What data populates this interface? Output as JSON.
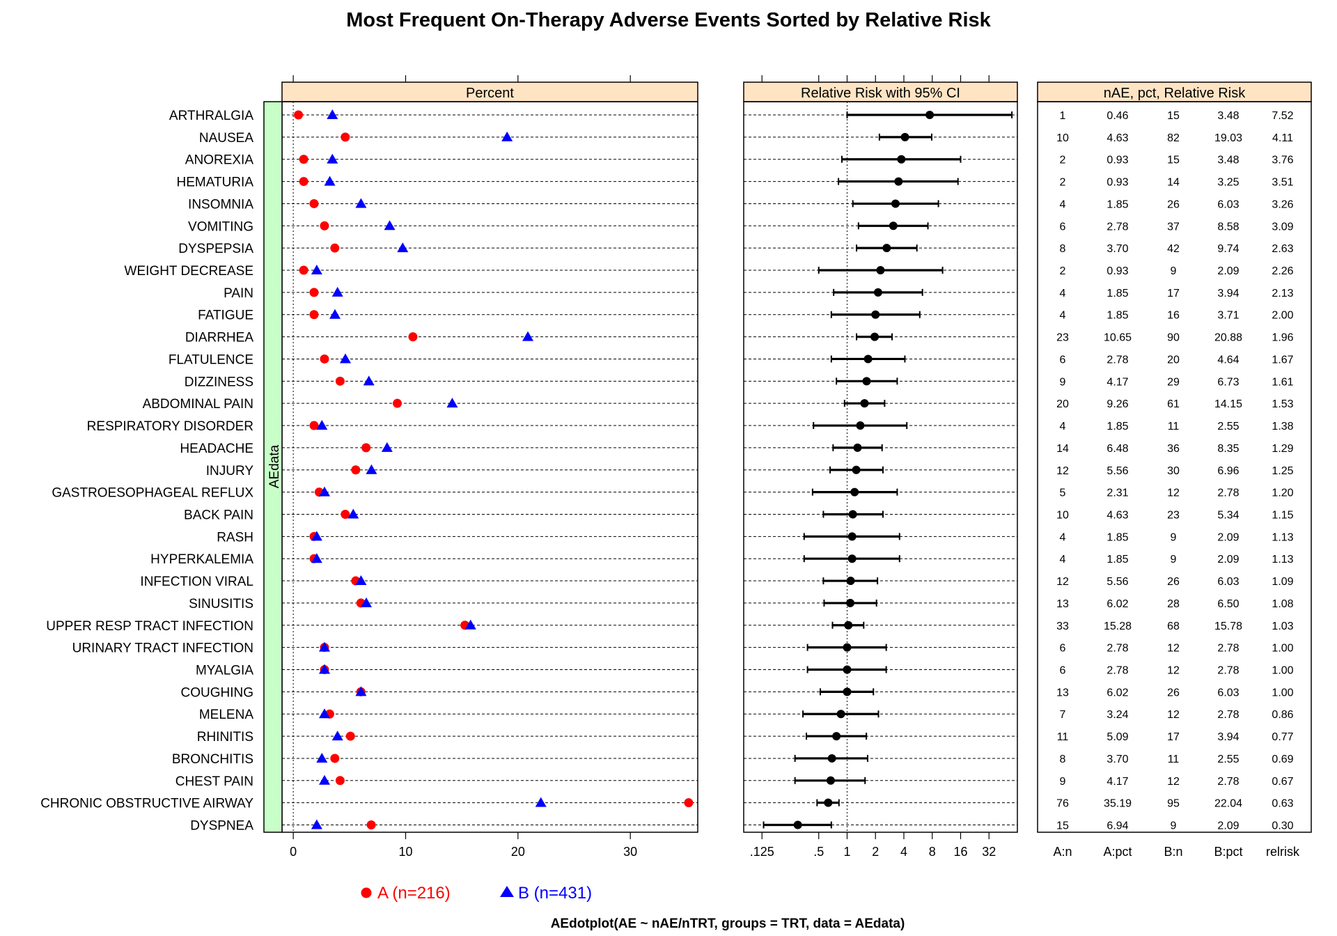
{
  "title": "Most Frequent On-Therapy Adverse Events Sorted by Relative Risk",
  "footer": "AEdotplot(AE ~ nAE/nTRT, groups = TRT, data = AEdata)",
  "strip_label": "AEdata",
  "colors": {
    "A": "#ff0000",
    "B": "#0000ff",
    "header": "#ffe4c4",
    "strip": "#c8ffc8"
  },
  "legend": [
    {
      "label": "A (n=216)",
      "color": "#ff0000",
      "symbol": "circle"
    },
    {
      "label": "B (n=431)",
      "color": "#0000ff",
      "symbol": "triangle"
    }
  ],
  "chart_data": [
    {
      "type": "dot",
      "panel_title": "Percent",
      "xlim": [
        -1,
        36
      ],
      "xticks": [
        0,
        10,
        20,
        30
      ],
      "series": [
        {
          "name": "A (n=216)",
          "marker": "circle",
          "color": "#ff0000"
        },
        {
          "name": "B (n=431)",
          "marker": "triangle",
          "color": "#0000ff"
        }
      ]
    },
    {
      "type": "forest",
      "panel_title": "Relative Risk with 95% CI",
      "scale": "log2",
      "xlim": [
        0.08,
        64
      ],
      "xticks": [
        0.125,
        0.5,
        1,
        2,
        4,
        8,
        16,
        32
      ],
      "xtick_labels": [
        ".125",
        ".5",
        "1",
        "2",
        "4",
        "8",
        "16",
        "32"
      ],
      "reference": 1
    },
    {
      "type": "table",
      "panel_title": "nAE, pct, Relative Risk",
      "columns": [
        "A:n",
        "A:pct",
        "B:n",
        "B:pct",
        "relrisk"
      ]
    }
  ],
  "rows": [
    {
      "ae": "ARTHRALGIA",
      "a_n": "1",
      "a_pct": "0.46",
      "b_n": "15",
      "b_pct": "3.48",
      "rr": "7.52",
      "lo": 1.0,
      "hi": 56.0
    },
    {
      "ae": "NAUSEA",
      "a_n": "10",
      "a_pct": "4.63",
      "b_n": "82",
      "b_pct": "19.03",
      "rr": "4.11",
      "lo": 2.2,
      "hi": 7.9
    },
    {
      "ae": "ANOREXIA",
      "a_n": "2",
      "a_pct": "0.93",
      "b_n": "15",
      "b_pct": "3.48",
      "rr": "3.76",
      "lo": 0.88,
      "hi": 16.0
    },
    {
      "ae": "HEMATURIA",
      "a_n": "2",
      "a_pct": "0.93",
      "b_n": "14",
      "b_pct": "3.25",
      "rr": "3.51",
      "lo": 0.81,
      "hi": 15.0
    },
    {
      "ae": "INSOMNIA",
      "a_n": "4",
      "a_pct": "1.85",
      "b_n": "26",
      "b_pct": "6.03",
      "rr": "3.26",
      "lo": 1.15,
      "hi": 9.3
    },
    {
      "ae": "VOMITING",
      "a_n": "6",
      "a_pct": "2.78",
      "b_n": "37",
      "b_pct": "8.58",
      "rr": "3.09",
      "lo": 1.32,
      "hi": 7.2
    },
    {
      "ae": "DYSPEPSIA",
      "a_n": "8",
      "a_pct": "3.70",
      "b_n": "42",
      "b_pct": "9.74",
      "rr": "2.63",
      "lo": 1.26,
      "hi": 5.5
    },
    {
      "ae": "WEIGHT DECREASE",
      "a_n": "2",
      "a_pct": "0.93",
      "b_n": "9",
      "b_pct": "2.09",
      "rr": "2.26",
      "lo": 0.5,
      "hi": 10.3
    },
    {
      "ae": "PAIN",
      "a_n": "4",
      "a_pct": "1.85",
      "b_n": "17",
      "b_pct": "3.94",
      "rr": "2.13",
      "lo": 0.72,
      "hi": 6.3
    },
    {
      "ae": "FATIGUE",
      "a_n": "4",
      "a_pct": "1.85",
      "b_n": "16",
      "b_pct": "3.71",
      "rr": "2.00",
      "lo": 0.68,
      "hi": 5.9
    },
    {
      "ae": "DIARRHEA",
      "a_n": "23",
      "a_pct": "10.65",
      "b_n": "90",
      "b_pct": "20.88",
      "rr": "1.96",
      "lo": 1.26,
      "hi": 3.0
    },
    {
      "ae": "FLATULENCE",
      "a_n": "6",
      "a_pct": "2.78",
      "b_n": "20",
      "b_pct": "4.64",
      "rr": "1.67",
      "lo": 0.68,
      "hi": 4.1
    },
    {
      "ae": "DIZZINESS",
      "a_n": "9",
      "a_pct": "4.17",
      "b_n": "29",
      "b_pct": "6.73",
      "rr": "1.61",
      "lo": 0.77,
      "hi": 3.4
    },
    {
      "ae": "ABDOMINAL PAIN",
      "a_n": "20",
      "a_pct": "9.26",
      "b_n": "61",
      "b_pct": "14.15",
      "rr": "1.53",
      "lo": 0.94,
      "hi": 2.5
    },
    {
      "ae": "RESPIRATORY DISORDER",
      "a_n": "4",
      "a_pct": "1.85",
      "b_n": "11",
      "b_pct": "2.55",
      "rr": "1.38",
      "lo": 0.44,
      "hi": 4.3
    },
    {
      "ae": "HEADACHE",
      "a_n": "14",
      "a_pct": "6.48",
      "b_n": "36",
      "b_pct": "8.35",
      "rr": "1.29",
      "lo": 0.71,
      "hi": 2.35
    },
    {
      "ae": "INJURY",
      "a_n": "12",
      "a_pct": "5.56",
      "b_n": "30",
      "b_pct": "6.96",
      "rr": "1.25",
      "lo": 0.66,
      "hi": 2.4
    },
    {
      "ae": "GASTROESOPHAGEAL REFLUX",
      "a_n": "5",
      "a_pct": "2.31",
      "b_n": "12",
      "b_pct": "2.78",
      "rr": "1.20",
      "lo": 0.43,
      "hi": 3.4
    },
    {
      "ae": "BACK PAIN",
      "a_n": "10",
      "a_pct": "4.63",
      "b_n": "23",
      "b_pct": "5.34",
      "rr": "1.15",
      "lo": 0.56,
      "hi": 2.4
    },
    {
      "ae": "RASH",
      "a_n": "4",
      "a_pct": "1.85",
      "b_n": "9",
      "b_pct": "2.09",
      "rr": "1.13",
      "lo": 0.35,
      "hi": 3.6
    },
    {
      "ae": "HYPERKALEMIA",
      "a_n": "4",
      "a_pct": "1.85",
      "b_n": "9",
      "b_pct": "2.09",
      "rr": "1.13",
      "lo": 0.35,
      "hi": 3.6
    },
    {
      "ae": "INFECTION VIRAL",
      "a_n": "12",
      "a_pct": "5.56",
      "b_n": "26",
      "b_pct": "6.03",
      "rr": "1.09",
      "lo": 0.56,
      "hi": 2.1
    },
    {
      "ae": "SINUSITIS",
      "a_n": "13",
      "a_pct": "6.02",
      "b_n": "28",
      "b_pct": "6.50",
      "rr": "1.08",
      "lo": 0.57,
      "hi": 2.05
    },
    {
      "ae": "UPPER RESP TRACT INFECTION",
      "a_n": "33",
      "a_pct": "15.28",
      "b_n": "68",
      "b_pct": "15.78",
      "rr": "1.03",
      "lo": 0.7,
      "hi": 1.5
    },
    {
      "ae": "URINARY TRACT INFECTION",
      "a_n": "6",
      "a_pct": "2.78",
      "b_n": "12",
      "b_pct": "2.78",
      "rr": "1.00",
      "lo": 0.38,
      "hi": 2.6
    },
    {
      "ae": "MYALGIA",
      "a_n": "6",
      "a_pct": "2.78",
      "b_n": "12",
      "b_pct": "2.78",
      "rr": "1.00",
      "lo": 0.38,
      "hi": 2.6
    },
    {
      "ae": "COUGHING",
      "a_n": "13",
      "a_pct": "6.02",
      "b_n": "26",
      "b_pct": "6.03",
      "rr": "1.00",
      "lo": 0.52,
      "hi": 1.9
    },
    {
      "ae": "MELENA",
      "a_n": "7",
      "a_pct": "3.24",
      "b_n": "12",
      "b_pct": "2.78",
      "rr": "0.86",
      "lo": 0.34,
      "hi": 2.15
    },
    {
      "ae": "RHINITIS",
      "a_n": "11",
      "a_pct": "5.09",
      "b_n": "17",
      "b_pct": "3.94",
      "rr": "0.77",
      "lo": 0.37,
      "hi": 1.6
    },
    {
      "ae": "BRONCHITIS",
      "a_n": "8",
      "a_pct": "3.70",
      "b_n": "11",
      "b_pct": "2.55",
      "rr": "0.69",
      "lo": 0.28,
      "hi": 1.65
    },
    {
      "ae": "CHEST PAIN",
      "a_n": "9",
      "a_pct": "4.17",
      "b_n": "12",
      "b_pct": "2.78",
      "rr": "0.67",
      "lo": 0.28,
      "hi": 1.55
    },
    {
      "ae": "CHRONIC OBSTRUCTIVE AIRWAY",
      "a_n": "76",
      "a_pct": "35.19",
      "b_n": "95",
      "b_pct": "22.04",
      "rr": "0.63",
      "lo": 0.48,
      "hi": 0.82
    },
    {
      "ae": "DYSPNEA",
      "a_n": "15",
      "a_pct": "6.94",
      "b_n": "9",
      "b_pct": "2.09",
      "rr": "0.30",
      "lo": 0.13,
      "hi": 0.68
    }
  ]
}
